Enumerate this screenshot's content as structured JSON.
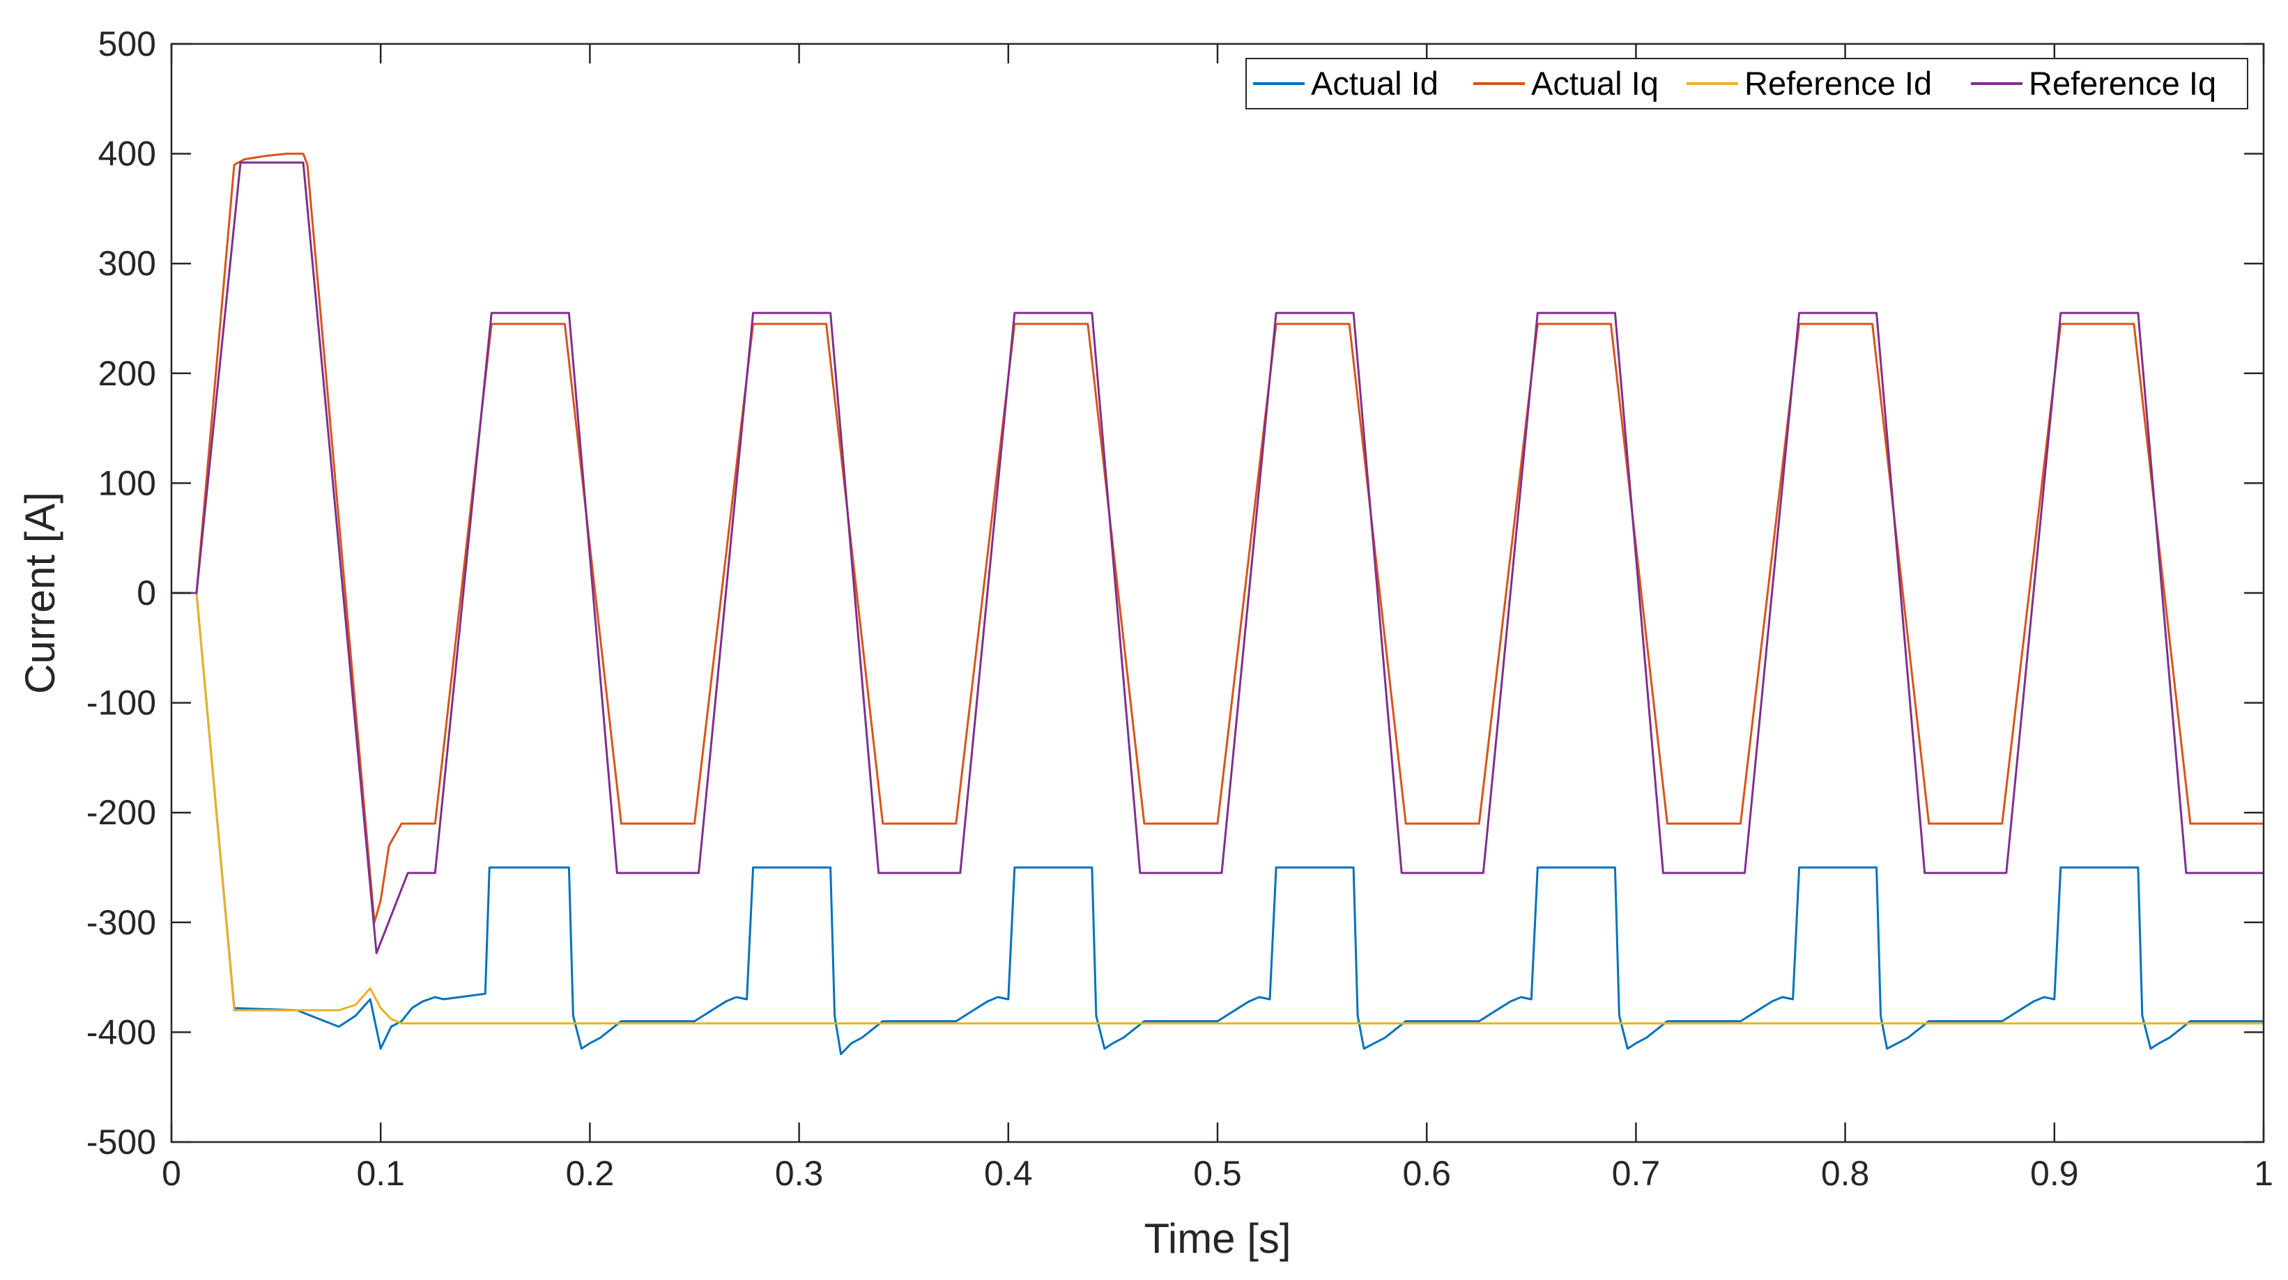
{
  "chart_data": {
    "type": "line",
    "title": "",
    "xlabel": "Time [s]",
    "ylabel": "Current [A]",
    "xlim": [
      0,
      1
    ],
    "ylim": [
      -500,
      500
    ],
    "xticks": [
      0,
      0.1,
      0.2,
      0.3,
      0.4,
      0.5,
      0.6,
      0.7,
      0.8,
      0.9,
      1
    ],
    "xtick_labels": [
      "0",
      "0.1",
      "0.2",
      "0.3",
      "0.4",
      "0.5",
      "0.6",
      "0.7",
      "0.8",
      "0.9",
      "1"
    ],
    "yticks": [
      500,
      400,
      300,
      200,
      100,
      0,
      -100,
      -200,
      -300,
      -400,
      -500
    ],
    "ytick_labels": [
      "500",
      "400",
      "300",
      "200",
      "100",
      "0",
      "-100",
      "-200",
      "-300",
      "-400",
      "-500"
    ],
    "grid": false,
    "legend_position": "top-right",
    "series": [
      {
        "name": "Actual Id",
        "color": "#0072BD",
        "x": [
          0,
          0.012,
          0.03,
          0.06,
          0.08,
          0.088,
          0.095,
          0.1,
          0.105,
          0.11,
          0.115,
          0.12,
          0.126,
          0.13,
          0.15,
          0.152,
          0.19,
          0.192,
          0.196,
          0.2,
          0.205,
          0.215,
          0.25,
          0.26,
          0.265,
          0.27,
          0.275,
          0.278,
          0.315,
          0.317,
          0.32,
          0.325,
          0.33,
          0.34,
          0.375,
          0.385,
          0.39,
          0.395,
          0.4,
          0.403,
          0.44,
          0.442,
          0.446,
          0.45,
          0.455,
          0.465,
          0.5,
          0.51,
          0.515,
          0.52,
          0.525,
          0.528,
          0.565,
          0.567,
          0.57,
          0.575,
          0.58,
          0.59,
          0.625,
          0.635,
          0.64,
          0.645,
          0.65,
          0.653,
          0.69,
          0.692,
          0.696,
          0.7,
          0.705,
          0.715,
          0.75,
          0.76,
          0.765,
          0.77,
          0.775,
          0.778,
          0.815,
          0.817,
          0.82,
          0.825,
          0.83,
          0.84,
          0.875,
          0.885,
          0.89,
          0.895,
          0.9,
          0.903,
          0.94,
          0.942,
          0.946,
          0.95,
          0.955,
          0.965,
          1
        ],
        "y": [
          0,
          0,
          -378,
          -380,
          -395,
          -385,
          -370,
          -415,
          -395,
          -390,
          -378,
          -372,
          -368,
          -370,
          -365,
          -250,
          -250,
          -385,
          -415,
          -410,
          -405,
          -390,
          -390,
          -378,
          -372,
          -368,
          -370,
          -250,
          -250,
          -385,
          -420,
          -410,
          -405,
          -390,
          -390,
          -378,
          -372,
          -368,
          -370,
          -250,
          -250,
          -385,
          -415,
          -410,
          -405,
          -390,
          -390,
          -378,
          -372,
          -368,
          -370,
          -250,
          -250,
          -385,
          -415,
          -410,
          -405,
          -390,
          -390,
          -378,
          -372,
          -368,
          -370,
          -250,
          -250,
          -385,
          -415,
          -410,
          -405,
          -390,
          -390,
          -378,
          -372,
          -368,
          -370,
          -250,
          -250,
          -385,
          -415,
          -410,
          -405,
          -390,
          -390,
          -378,
          -372,
          -368,
          -370,
          -250,
          -250,
          -385,
          -415,
          -410,
          -405,
          -390,
          -390
        ]
      },
      {
        "name": "Actual Iq",
        "color": "#D95319",
        "x": [
          0,
          0.012,
          0.03,
          0.035,
          0.045,
          0.055,
          0.063,
          0.065,
          0.097,
          0.1,
          0.104,
          0.11,
          0.126,
          0.153,
          0.188,
          0.215,
          0.25,
          0.278,
          0.313,
          0.34,
          0.375,
          0.403,
          0.438,
          0.465,
          0.5,
          0.528,
          0.563,
          0.59,
          0.625,
          0.653,
          0.688,
          0.715,
          0.75,
          0.778,
          0.813,
          0.84,
          0.875,
          0.903,
          0.938,
          0.965,
          1
        ],
        "y": [
          0,
          0,
          390,
          395,
          398,
          400,
          400,
          390,
          -300,
          -280,
          -230,
          -210,
          -210,
          245,
          245,
          -210,
          -210,
          245,
          245,
          -210,
          -210,
          245,
          245,
          -210,
          -210,
          245,
          245,
          -210,
          -210,
          245,
          245,
          -210,
          -210,
          245,
          245,
          -210,
          -210,
          245,
          245,
          -210,
          -210
        ]
      },
      {
        "name": "Reference Id",
        "color": "#EDB120",
        "x": [
          0,
          0.012,
          0.03,
          0.08,
          0.088,
          0.095,
          0.1,
          0.105,
          0.11,
          0.115,
          1
        ],
        "y": [
          0,
          0,
          -380,
          -380,
          -375,
          -360,
          -378,
          -388,
          -392,
          -392,
          -392
        ]
      },
      {
        "name": "Reference Iq",
        "color": "#7E2F8E",
        "x": [
          0,
          0.012,
          0.033,
          0.063,
          0.098,
          0.113,
          0.126,
          0.153,
          0.19,
          0.213,
          0.252,
          0.278,
          0.315,
          0.338,
          0.377,
          0.403,
          0.44,
          0.463,
          0.502,
          0.528,
          0.565,
          0.588,
          0.627,
          0.653,
          0.69,
          0.713,
          0.752,
          0.778,
          0.815,
          0.838,
          0.877,
          0.903,
          0.94,
          0.963,
          1
        ],
        "y": [
          0,
          0,
          392,
          392,
          -328,
          -255,
          -255,
          255,
          255,
          -255,
          -255,
          255,
          255,
          -255,
          -255,
          255,
          255,
          -255,
          -255,
          255,
          255,
          -255,
          -255,
          255,
          255,
          -255,
          -255,
          255,
          255,
          -255,
          -255,
          255,
          255,
          -255,
          -255
        ]
      }
    ]
  }
}
